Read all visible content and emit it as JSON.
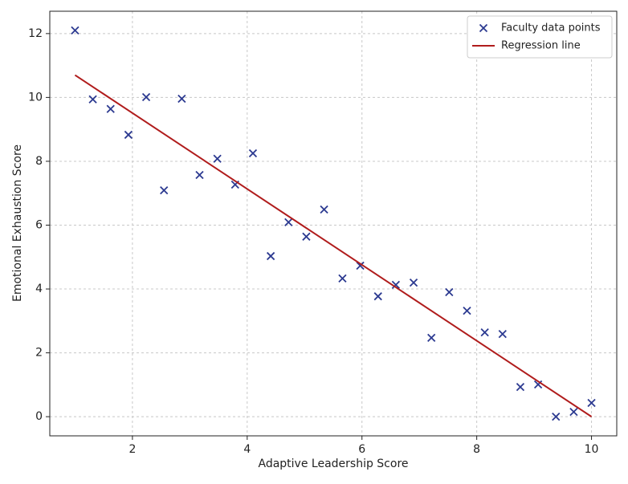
{
  "chart_data": {
    "type": "scatter",
    "x_label": "Adaptive Leadership Score",
    "y_label": "Emotional Exhaustion Score",
    "xlim": [
      0.56,
      10.44
    ],
    "ylim": [
      -0.6,
      12.7
    ],
    "xticks": [
      2,
      4,
      6,
      8,
      10
    ],
    "yticks": [
      0,
      2,
      4,
      6,
      8,
      10,
      12
    ],
    "grid": true,
    "legend": "upper right",
    "series": [
      {
        "name": "Faculty data points",
        "kind": "scatter",
        "color": "#2b3990",
        "x": [
          1,
          1.31,
          1.62,
          1.93,
          2.24,
          2.55,
          2.86,
          3.17,
          3.48,
          3.79,
          4.1,
          4.41,
          4.72,
          5.03,
          5.34,
          5.66,
          5.97,
          6.28,
          6.59,
          6.9,
          7.21,
          7.52,
          7.83,
          8.14,
          8.45,
          8.76,
          9.07,
          9.38,
          9.69,
          10
        ],
        "values": [
          12.1,
          9.94,
          9.64,
          8.83,
          10.01,
          7.09,
          9.96,
          7.57,
          8.08,
          7.27,
          8.25,
          5.03,
          6.09,
          5.64,
          6.49,
          4.33,
          4.73,
          3.77,
          4.13,
          4.2,
          2.47,
          3.9,
          3.32,
          2.64,
          2.59,
          0.93,
          1.01,
          0,
          0.15,
          0.43
        ]
      },
      {
        "name": "Regression line",
        "kind": "line",
        "color": "#b01c1c",
        "x": [
          1,
          10
        ],
        "values": [
          10.7,
          0.0
        ]
      }
    ]
  }
}
